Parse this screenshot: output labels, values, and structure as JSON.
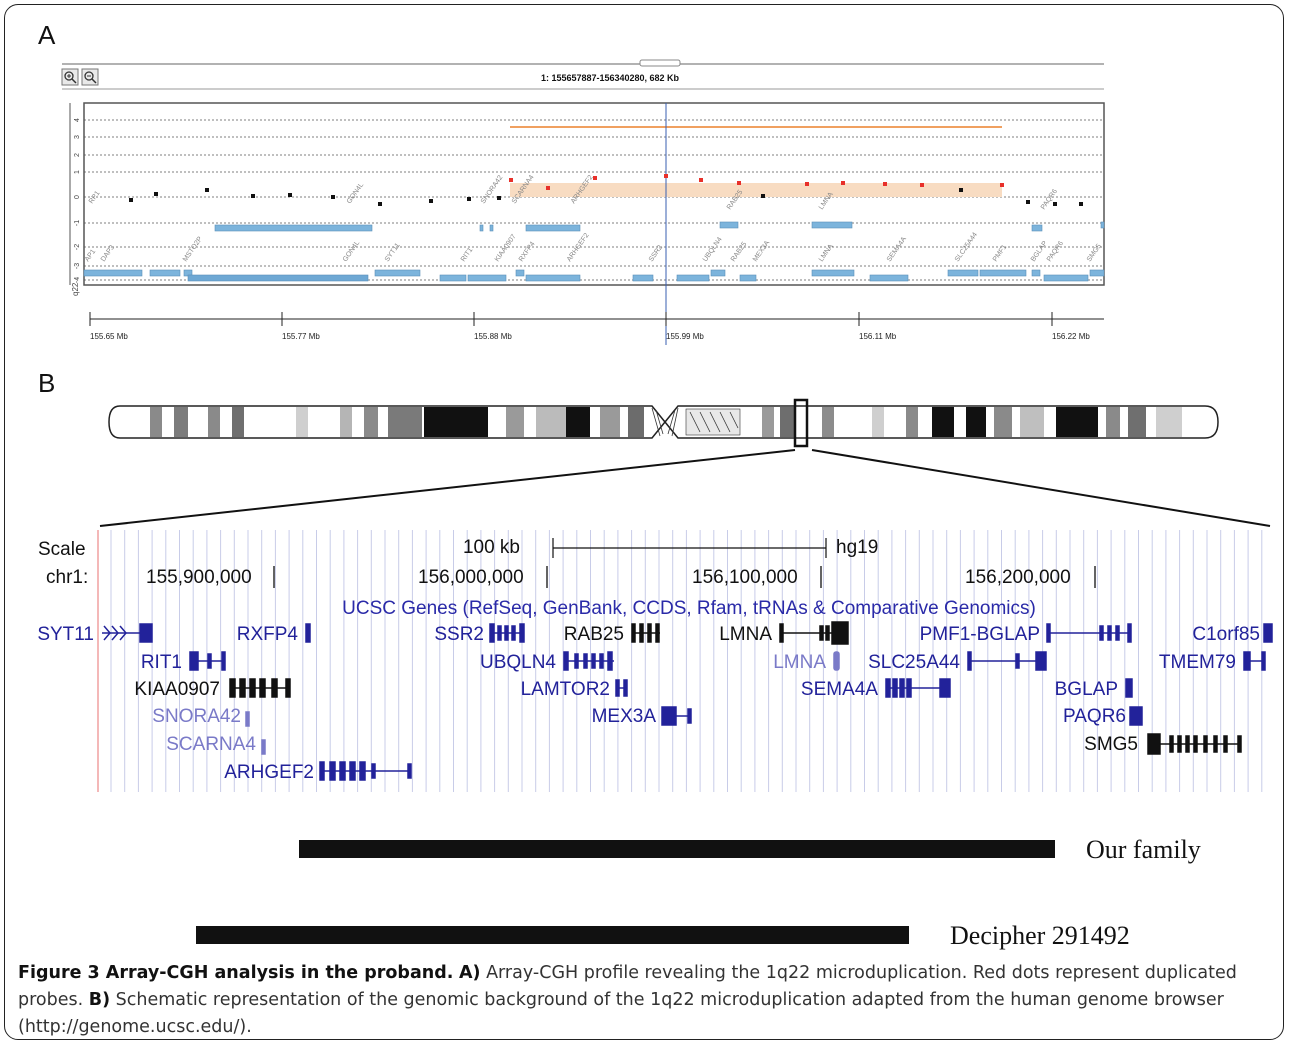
{
  "panels": {
    "a": "A",
    "b": "B"
  },
  "panel_a": {
    "title": "1: 155657887-156340280, 682 Kb",
    "zoom_in_icon": "zoom-in-icon",
    "zoom_out_icon": "zoom-out-icon",
    "y_ticks": [
      "4",
      "3",
      "2",
      "1",
      "0",
      "-1",
      "-2",
      "-3",
      "-4"
    ],
    "band_label": "q22",
    "axis_ticks": [
      "155.65 Mb",
      "155.77 Mb",
      "155.88 Mb",
      "155.99 Mb",
      "156.11 Mb",
      "156.22 Mb"
    ],
    "probe_labels": [
      "RP1",
      "GON4L",
      "SNORA42",
      "SCARNA4",
      "ARHGEF2",
      "RAB25",
      "LMNA",
      "PAQR6"
    ],
    "gene_labels": [
      "AP1",
      "DAP3",
      "MSTO2P",
      "GON4L",
      "SYT11",
      "RIT1",
      "KIAA0907",
      "RXFP4",
      "ARHGEF2",
      "SSR2",
      "UBQLN4",
      "RAB25",
      "MEX3A",
      "LMNA",
      "SEMA4A",
      "SLC25A44",
      "PMF1",
      "BGLAP",
      "PAQR6",
      "SMG5"
    ],
    "colors": {
      "duplicated": "#e8302a",
      "normal": "#111111",
      "gain_shade": "#f8dcc2",
      "gain_line": "#f0a060",
      "gene_box": "#7cb4dc"
    }
  },
  "panel_b": {
    "scale_label": "Scale",
    "scale_value": "100 kb",
    "assembly": "hg19",
    "chr_label": "chr1:",
    "coords": [
      "155,900,000",
      "156,000,000",
      "156,100,000",
      "156,200,000"
    ],
    "track_title": "UCSC Genes (RefSeq, GenBank, CCDS, Rfam, tRNAs & Comparative Genomics)",
    "genes": [
      "SYT11",
      "RXFP4",
      "SSR2",
      "RAB25",
      "LMNA",
      "PMF1-BGLAP",
      "C1orf85",
      "RIT1",
      "UBQLN4",
      "LMNA",
      "SLC25A44",
      "TMEM79",
      "KIAA0907",
      "LAMTOR2",
      "SEMA4A",
      "BGLAP",
      "SNORA42",
      "MEX3A",
      "PAQR6",
      "SCARNA4",
      "SMG5",
      "ARHGEF2"
    ],
    "bars": [
      {
        "label": "Our family"
      },
      {
        "label": "Decipher 291492"
      }
    ]
  },
  "caption": {
    "title": "Figure 3 Array-CGH analysis in the proband.",
    "a_label": "A)",
    "a_text": " Array-CGH profile revealing the 1q22 microduplication. Red dots represent duplicated probes. ",
    "b_label": "B)",
    "b_text": " Schematic representation of the genomic background of the 1q22 microduplication adapted from the human genome browser (http://genome.ucsc.edu/)."
  }
}
